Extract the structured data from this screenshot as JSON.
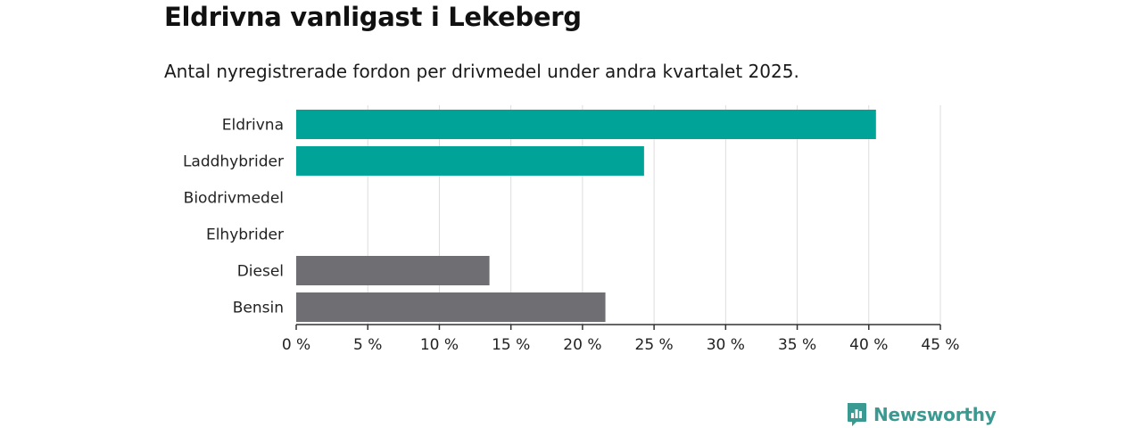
{
  "colors": {
    "electric": "#00a398",
    "fossil": "#6e6e73",
    "grid": "#dddddd",
    "axis": "#333333",
    "brand": "#3a9a92"
  },
  "brand": {
    "icon": "newsworthy-logo-icon",
    "name": "Newsworthy"
  },
  "chart_data": {
    "type": "bar",
    "orientation": "horizontal",
    "title": "Eldrivna vanligast i Lekeberg",
    "subtitle": "Antal nyregistrerade fordon per drivmedel under andra kvartalet 2025.",
    "categories": [
      "Eldrivna",
      "Laddhybrider",
      "Biodrivmedel",
      "Elhybrider",
      "Diesel",
      "Bensin"
    ],
    "values": [
      40.5,
      24.3,
      0,
      0,
      13.5,
      21.6
    ],
    "bar_colors": [
      "#00a398",
      "#00a398",
      "#00a398",
      "#00a398",
      "#6e6e73",
      "#6e6e73"
    ],
    "xlim": [
      0,
      45
    ],
    "xticks": [
      0,
      5,
      10,
      15,
      20,
      25,
      30,
      35,
      40,
      45
    ],
    "tick_suffix": " %",
    "grid": true,
    "xlabel": "",
    "ylabel": ""
  }
}
